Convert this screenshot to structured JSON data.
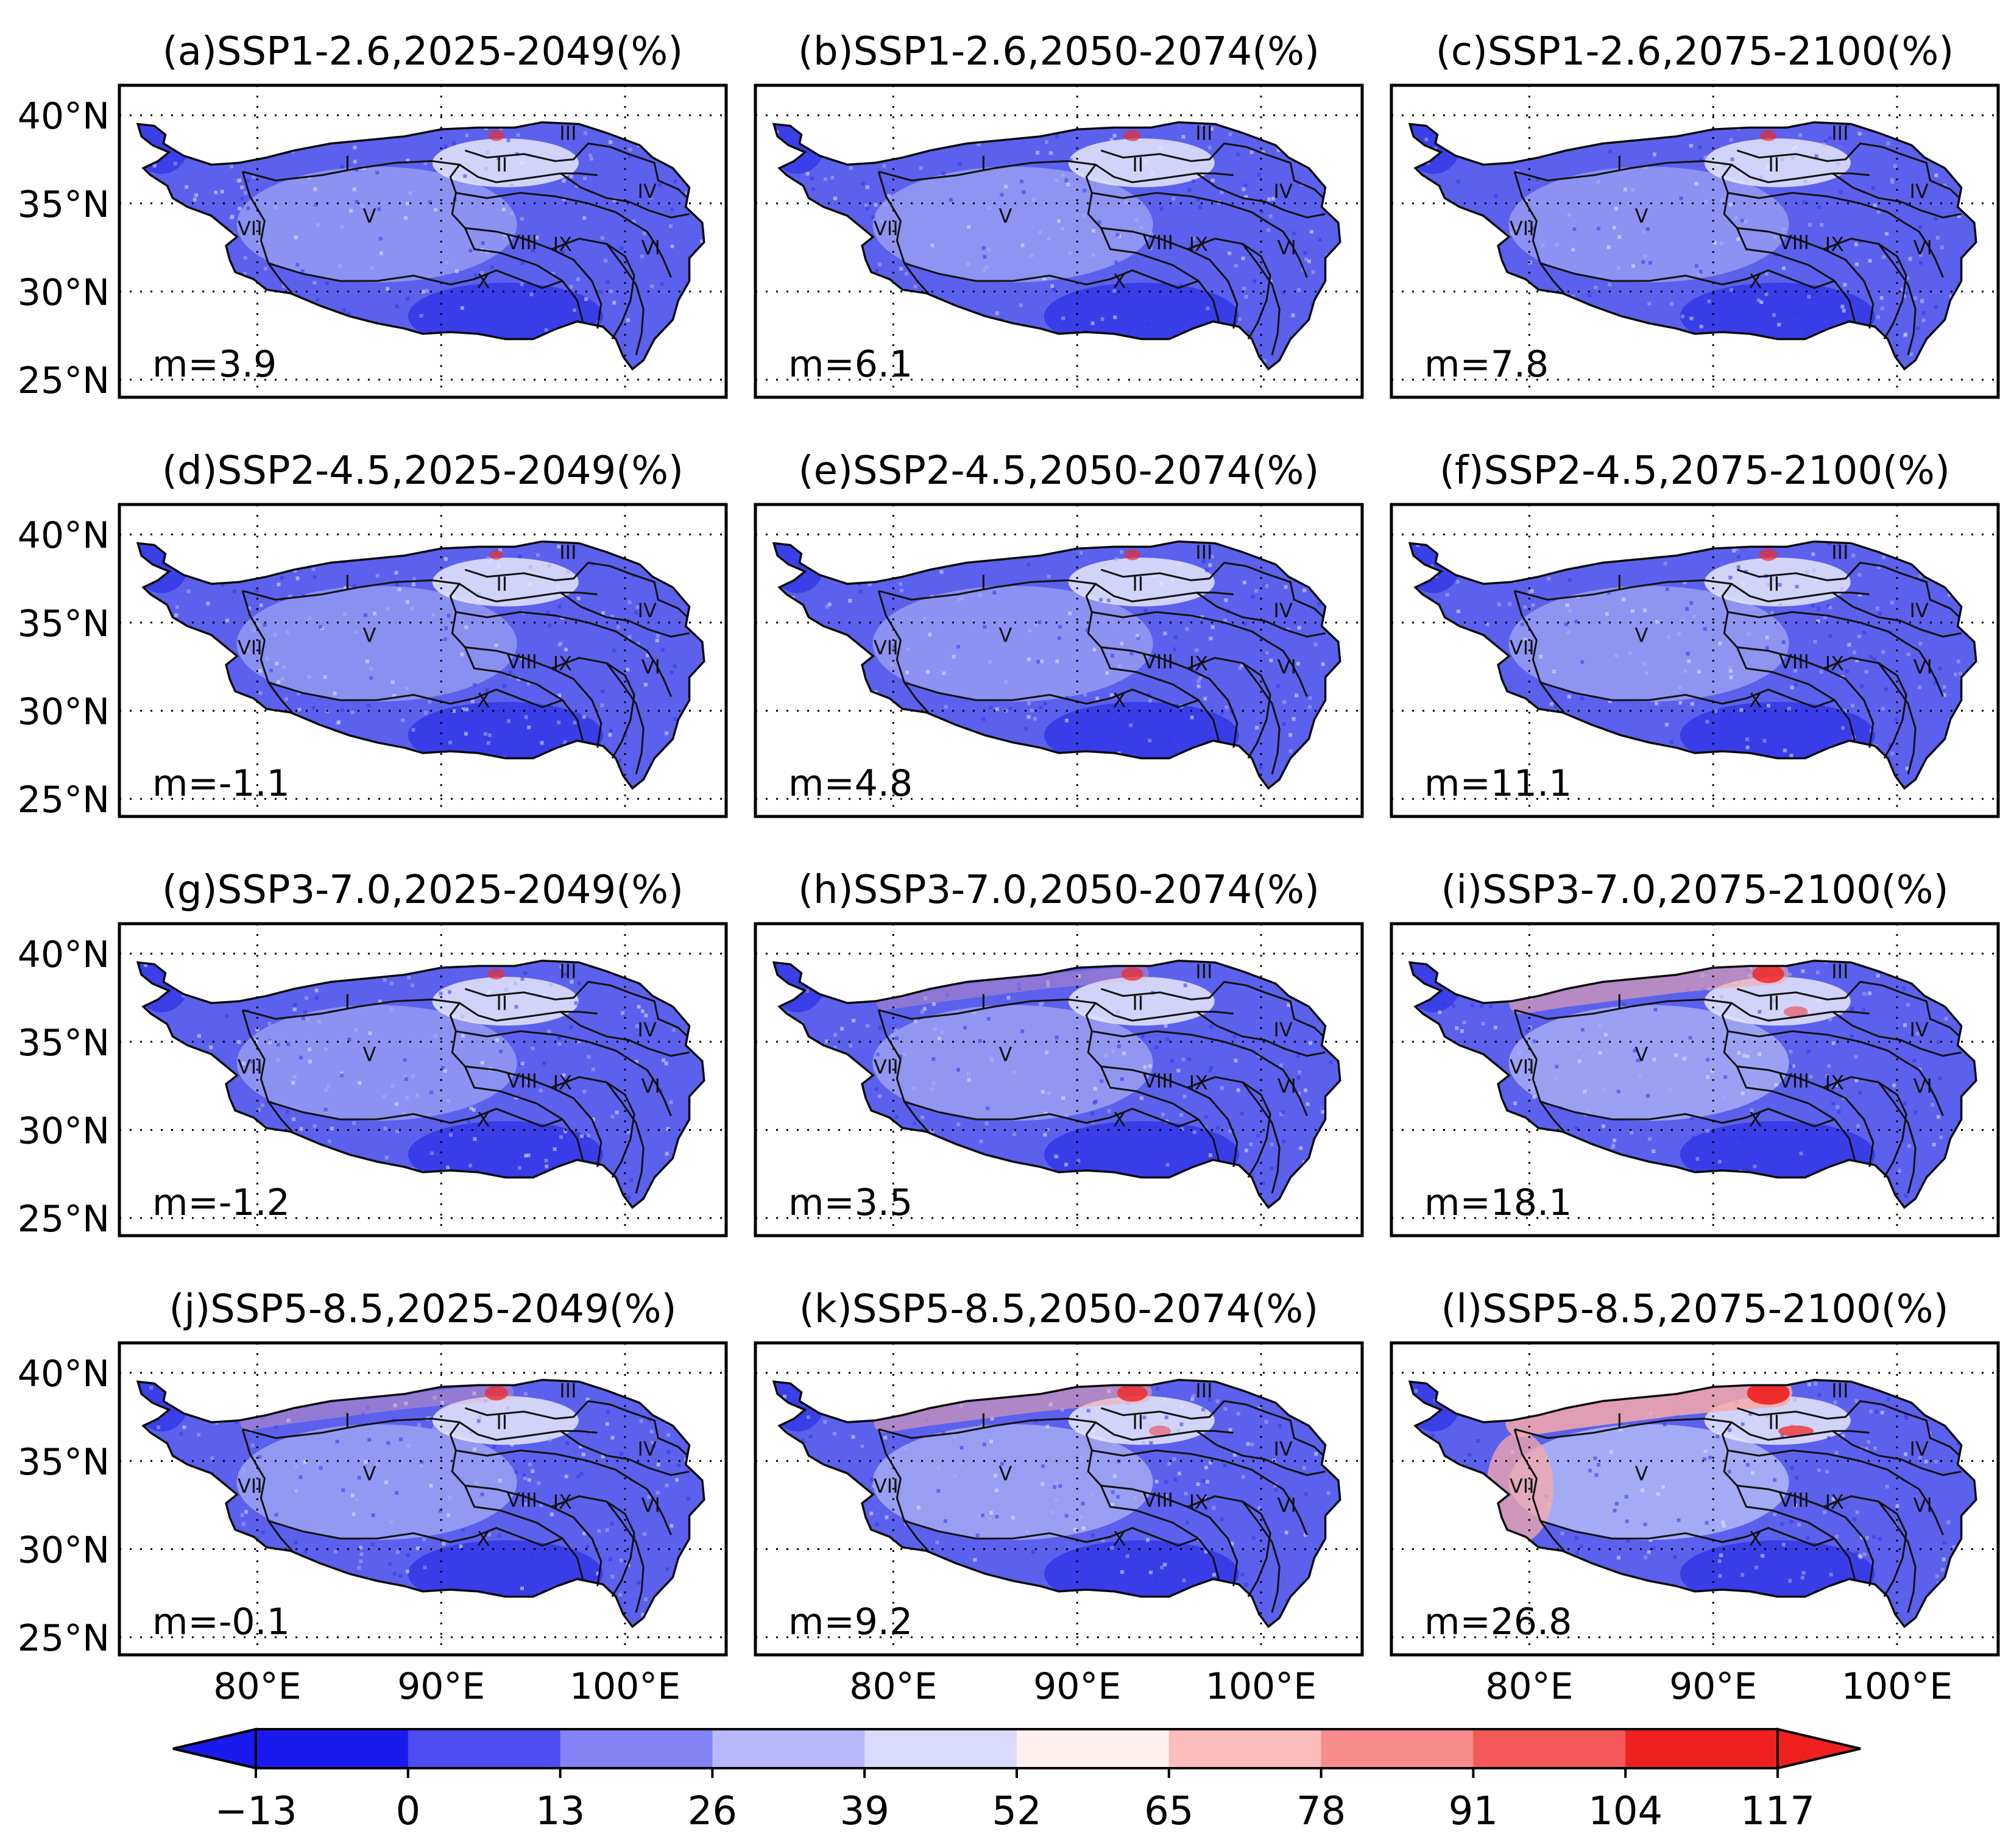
{
  "panels": [
    {
      "title": "(a)SSP1-2.6,2025-2049(%)",
      "m": "m=3.9",
      "red": 0.18
    },
    {
      "title": "(b)SSP1-2.6,2050-2074(%)",
      "m": "m=6.1",
      "red": 0.22
    },
    {
      "title": "(c)SSP1-2.6,2075-2100(%)",
      "m": "m=7.8",
      "red": 0.2
    },
    {
      "title": "(d)SSP2-4.5,2025-2049(%)",
      "m": "m=-1.1",
      "red": 0.12
    },
    {
      "title": "(e)SSP2-4.5,2050-2074(%)",
      "m": "m=4.8",
      "red": 0.18
    },
    {
      "title": "(f)SSP2-4.5,2075-2100(%)",
      "m": "m=11.1",
      "red": 0.25
    },
    {
      "title": "(g)SSP3-7.0,2025-2049(%)",
      "m": "m=-1.2",
      "red": 0.2
    },
    {
      "title": "(h)SSP3-7.0,2050-2074(%)",
      "m": "m=3.5",
      "red": 0.35
    },
    {
      "title": "(i)SSP3-7.0,2075-2100(%)",
      "m": "m=18.1",
      "red": 0.65
    },
    {
      "title": "(j)SSP5-8.5,2025-2049(%)",
      "m": "m=-0.1",
      "red": 0.4
    },
    {
      "title": "(k)SSP5-8.5,2050-2074(%)",
      "m": "m=9.2",
      "red": 0.6
    },
    {
      "title": "(l)SSP5-8.5,2075-2100(%)",
      "m": "m=26.8",
      "red": 0.95
    }
  ],
  "region_labels": [
    "I",
    "II",
    "III",
    "IV",
    "V",
    "VI",
    "VII",
    "VIII",
    "IX",
    "X"
  ],
  "lat_labels": [
    "40°N",
    "35°N",
    "30°N",
    "25°N"
  ],
  "lon_labels": [
    "80°E",
    "90°E",
    "100°E"
  ],
  "colorbar": {
    "ticks": [
      "−13",
      "0",
      "13",
      "26",
      "39",
      "52",
      "65",
      "78",
      "91",
      "104",
      "117"
    ],
    "colors": [
      "#1a1aef",
      "#4d4ef2",
      "#8383f5",
      "#b7b8fa",
      "#dadbfc",
      "#fff0f0",
      "#fdbcbc",
      "#f88b8b",
      "#f45858",
      "#ef2020"
    ]
  },
  "palette": {
    "deep_blue": "#3337e6",
    "mid_blue": "#5b61ec",
    "light_blue": "#a9b0f4",
    "pale": "#e6e8fb",
    "red": "#ef2a2a",
    "pink": "#f7a9a9"
  }
}
